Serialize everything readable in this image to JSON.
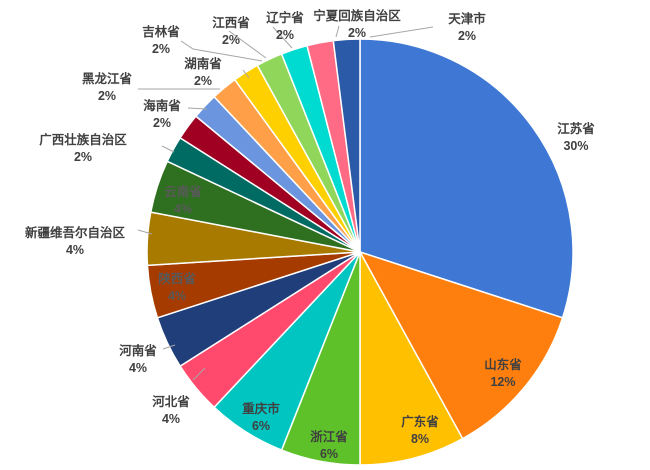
{
  "chart_data": {
    "type": "pie",
    "title": "",
    "start_angle_deg": 0,
    "direction": "clockwise",
    "slices": [
      {
        "label": "江苏省",
        "value": 30,
        "value_label": "30%",
        "color": "#3e78d4"
      },
      {
        "label": "山东省",
        "value": 12,
        "value_label": "12%",
        "color": "#ff7f0e"
      },
      {
        "label": "广东省",
        "value": 8,
        "value_label": "8%",
        "color": "#ffc000"
      },
      {
        "label": "浙江省",
        "value": 6,
        "value_label": "6%",
        "color": "#5ec12a"
      },
      {
        "label": "重庆市",
        "value": 6,
        "value_label": "6%",
        "color": "#00c5c0"
      },
      {
        "label": "河北省",
        "value": 4,
        "value_label": "4%",
        "color": "#ff4a6e"
      },
      {
        "label": "河南省",
        "value": 4,
        "value_label": "4%",
        "color": "#1f3e7a"
      },
      {
        "label": "陕西省",
        "value": 4,
        "value_label": "4%",
        "color": "#a63b00"
      },
      {
        "label": "新疆维吾尔自治区",
        "value": 4,
        "value_label": "4%",
        "color": "#a87a00"
      },
      {
        "label": "云南省",
        "value": 4,
        "value_label": "4%",
        "color": "#2e7020"
      },
      {
        "label": "广西壮族自治区",
        "value": 2,
        "value_label": "2%",
        "color": "#006b63"
      },
      {
        "label": "海南省",
        "value": 2,
        "value_label": "2%",
        "color": "#a00022"
      },
      {
        "label": "黑龙江省",
        "value": 2,
        "value_label": "2%",
        "color": "#6b96df"
      },
      {
        "label": "湖南省",
        "value": 2,
        "value_label": "2%",
        "color": "#ffa048"
      },
      {
        "label": "吉林省",
        "value": 2,
        "value_label": "2%",
        "color": "#ffd000"
      },
      {
        "label": "江西省",
        "value": 2,
        "value_label": "2%",
        "color": "#8fd65a"
      },
      {
        "label": "辽宁省",
        "value": 2,
        "value_label": "2%",
        "color": "#00dbd2"
      },
      {
        "label": "宁夏回族自治区",
        "value": 2,
        "value_label": "2%",
        "color": "#ff6a84"
      },
      {
        "label": "天津市",
        "value": 2,
        "value_label": "2%",
        "color": "#2b5aa8"
      }
    ]
  }
}
